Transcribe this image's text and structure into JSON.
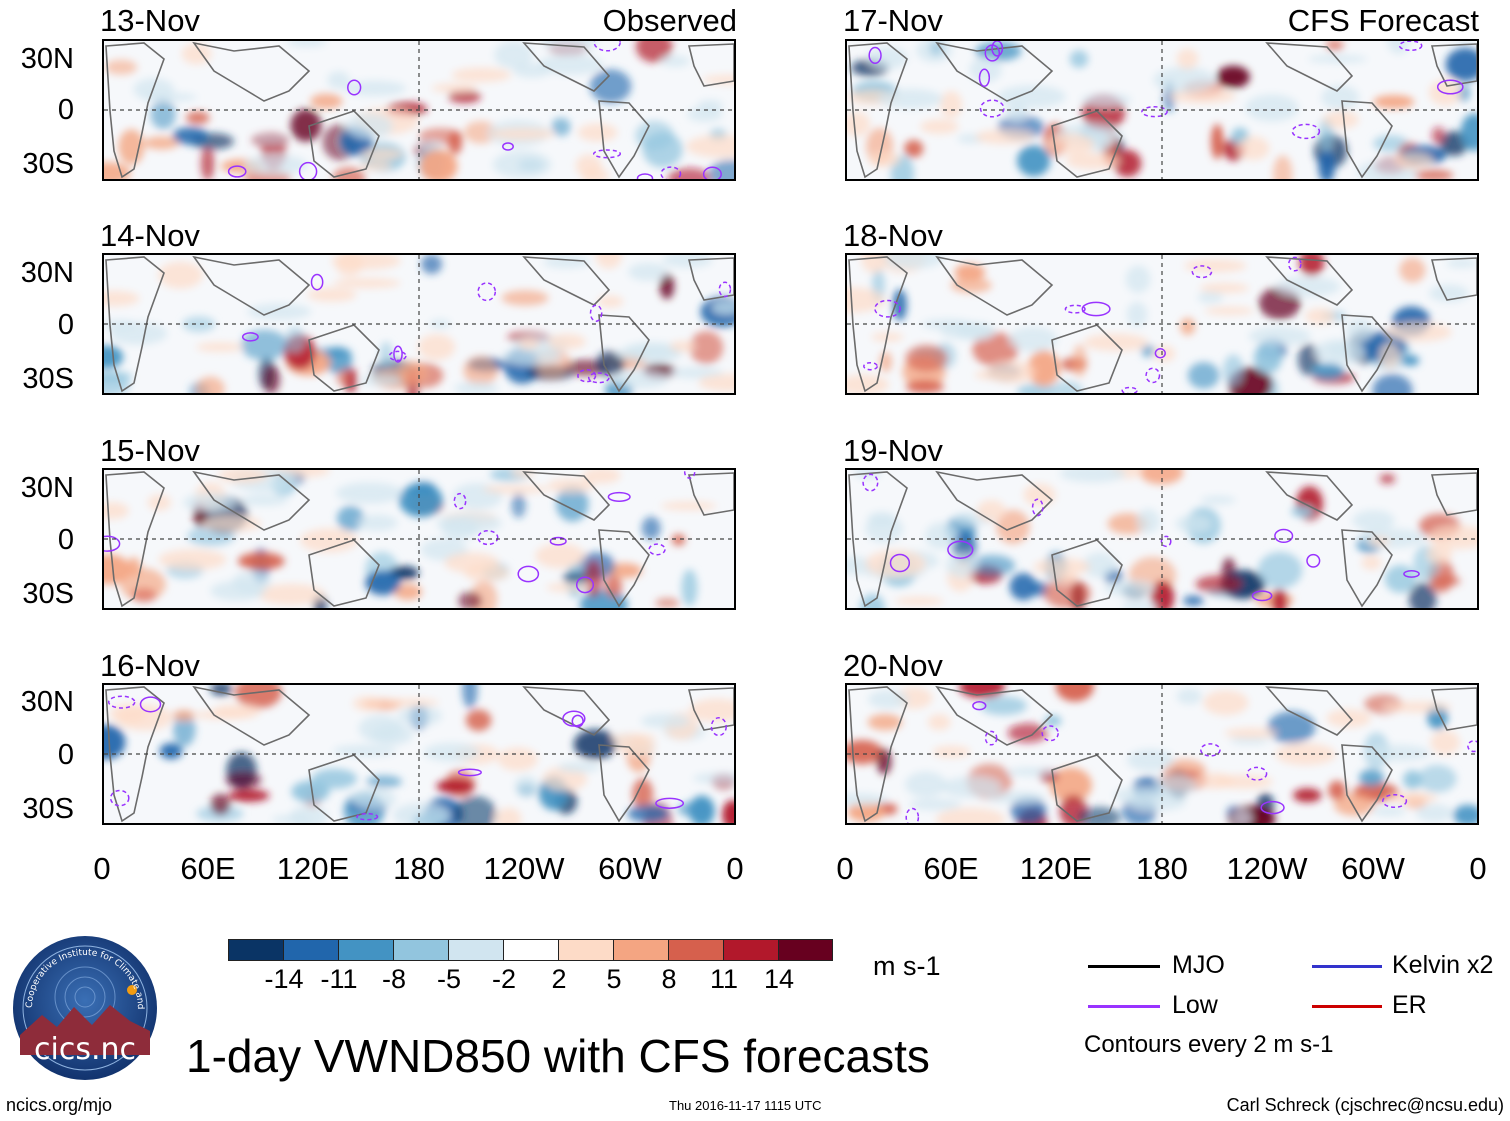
{
  "header": {
    "observed_label": "Observed",
    "forecast_label": "CFS Forecast"
  },
  "panels": {
    "observed": [
      "13-Nov",
      "14-Nov",
      "15-Nov",
      "16-Nov"
    ],
    "forecast": [
      "17-Nov",
      "18-Nov",
      "19-Nov",
      "20-Nov"
    ]
  },
  "axes": {
    "lat_labels": [
      "30N",
      "0",
      "30S"
    ],
    "lon_labels": [
      "0",
      "60E",
      "120E",
      "180",
      "120W",
      "60W",
      "0"
    ]
  },
  "colorbar": {
    "unit": "m s-1",
    "labels": [
      "-14",
      "-11",
      "-8",
      "-5",
      "-2",
      "2",
      "5",
      "8",
      "11",
      "14"
    ],
    "colors": [
      "#0a3465",
      "#2166ac",
      "#4393c3",
      "#92c5de",
      "#d1e5f0",
      "#ffffff",
      "#fddbc7",
      "#f4a582",
      "#d6604d",
      "#b2182b",
      "#67001f"
    ]
  },
  "legend": {
    "items": [
      {
        "label": "MJO",
        "color": "#000000"
      },
      {
        "label": "Kelvin x2",
        "color": "#3333cc"
      },
      {
        "label": "Low",
        "color": "#9933ff"
      },
      {
        "label": "ER",
        "color": "#cc0000"
      }
    ],
    "note": "Contours every 2 m s-1"
  },
  "logo": {
    "text": "cics.nc",
    "ring_text": "Cooperative Institute for Climate and Satellites"
  },
  "footer": {
    "main_title": "1-day VWND850 with CFS forecasts",
    "url": "ncics.org/mjo",
    "timestamp": "Thu 2016-11-17 1115 UTC",
    "author": "Carl Schreck (cjschrec@ncsu.edu)"
  }
}
